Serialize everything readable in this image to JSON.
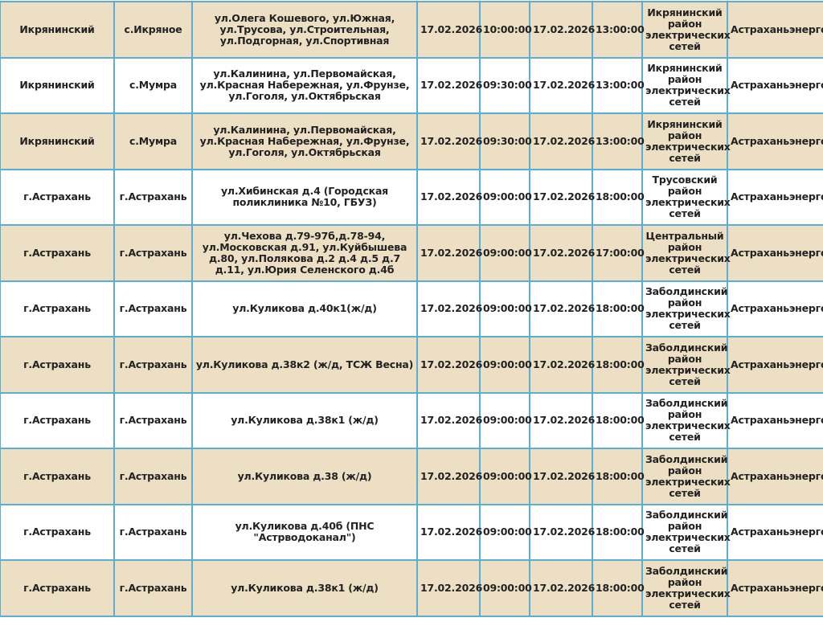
{
  "colors": {
    "row_alt": "#ecdfc4",
    "border": "#5aaed4"
  },
  "rows": [
    {
      "district": "Икрянинский",
      "locality": "с.Икряное",
      "streets": "ул.Олега Кошевого, ул.Южная, ул.Трусова, ул.Строительная, ул.Подгорная, ул.Спортивная",
      "start_date": "17.02.2026",
      "start_time": "10:00:00",
      "end_date": "17.02.2026",
      "end_time": "13:00:00",
      "unit": "Икрянинский район электрических сетей",
      "company": "Астраханьэнерго"
    },
    {
      "district": "Икрянинский",
      "locality": "с.Мумра",
      "streets": "ул.Калинина, ул.Первомайская, ул.Красная Набережная, ул.Фрунзе, ул.Гоголя, ул.Октябрьская",
      "start_date": "17.02.2026",
      "start_time": "09:30:00",
      "end_date": "17.02.2026",
      "end_time": "13:00:00",
      "unit": "Икрянинский район электрических сетей",
      "company": "Астраханьэнерго"
    },
    {
      "district": "Икрянинский",
      "locality": "с.Мумра",
      "streets": "ул.Калинина, ул.Первомайская, ул.Красная Набережная, ул.Фрунзе, ул.Гоголя, ул.Октябрьская",
      "start_date": "17.02.2026",
      "start_time": "09:30:00",
      "end_date": "17.02.2026",
      "end_time": "13:00:00",
      "unit": "Икрянинский район электрических сетей",
      "company": "Астраханьэнерго"
    },
    {
      "district": "г.Астрахань",
      "locality": "г.Астрахань",
      "streets": "ул.Хибинская д.4 (Городская поликлиника №10, ГБУЗ)",
      "start_date": "17.02.2026",
      "start_time": "09:00:00",
      "end_date": "17.02.2026",
      "end_time": "18:00:00",
      "unit": "Трусовский район электрических сетей",
      "company": "Астраханьэнерго"
    },
    {
      "district": "г.Астрахань",
      "locality": "г.Астрахань",
      "streets": "ул.Чехова д.79-97б,д.78-94, ул.Московская д.91, ул.Куйбышева д.80, ул.Полякова д.2 д.4 д.5 д.7 д.11, ул.Юрия Селенского д.4б",
      "start_date": "17.02.2026",
      "start_time": "09:00:00",
      "end_date": "17.02.2026",
      "end_time": "17:00:00",
      "unit": "Центральный район электрических сетей",
      "company": "Астраханьэнерго"
    },
    {
      "district": "г.Астрахань",
      "locality": "г.Астрахань",
      "streets": "ул.Куликова д.40к1(ж/д)",
      "start_date": "17.02.2026",
      "start_time": "09:00:00",
      "end_date": "17.02.2026",
      "end_time": "18:00:00",
      "unit": "Заболдинский район электрических сетей",
      "company": "Астраханьэнерго"
    },
    {
      "district": "г.Астрахань",
      "locality": "г.Астрахань",
      "streets": "ул.Куликова д.38к2 (ж/д, ТСЖ Весна)",
      "start_date": "17.02.2026",
      "start_time": "09:00:00",
      "end_date": "17.02.2026",
      "end_time": "18:00:00",
      "unit": "Заболдинский район электрических сетей",
      "company": "Астраханьэнерго"
    },
    {
      "district": "г.Астрахань",
      "locality": "г.Астрахань",
      "streets": "ул.Куликова д.38к1 (ж/д)",
      "start_date": "17.02.2026",
      "start_time": "09:00:00",
      "end_date": "17.02.2026",
      "end_time": "18:00:00",
      "unit": "Заболдинский район электрических сетей",
      "company": "Астраханьэнерго"
    },
    {
      "district": "г.Астрахань",
      "locality": "г.Астрахань",
      "streets": "ул.Куликова д.38 (ж/д)",
      "start_date": "17.02.2026",
      "start_time": "09:00:00",
      "end_date": "17.02.2026",
      "end_time": "18:00:00",
      "unit": "Заболдинский район электрических сетей",
      "company": "Астраханьэнерго"
    },
    {
      "district": "г.Астрахань",
      "locality": "г.Астрахань",
      "streets": "ул.Куликова д.40б (ПНС \"Астрводоканал\")",
      "start_date": "17.02.2026",
      "start_time": "09:00:00",
      "end_date": "17.02.2026",
      "end_time": "18:00:00",
      "unit": "Заболдинский район электрических сетей",
      "company": "Астраханьэнерго"
    },
    {
      "district": "г.Астрахань",
      "locality": "г.Астрахань",
      "streets": "ул.Куликова д.38к1 (ж/д)",
      "start_date": "17.02.2026",
      "start_time": "09:00:00",
      "end_date": "17.02.2026",
      "end_time": "18:00:00",
      "unit": "Заболдинский район электрических сетей",
      "company": "Астраханьэнерго"
    }
  ]
}
